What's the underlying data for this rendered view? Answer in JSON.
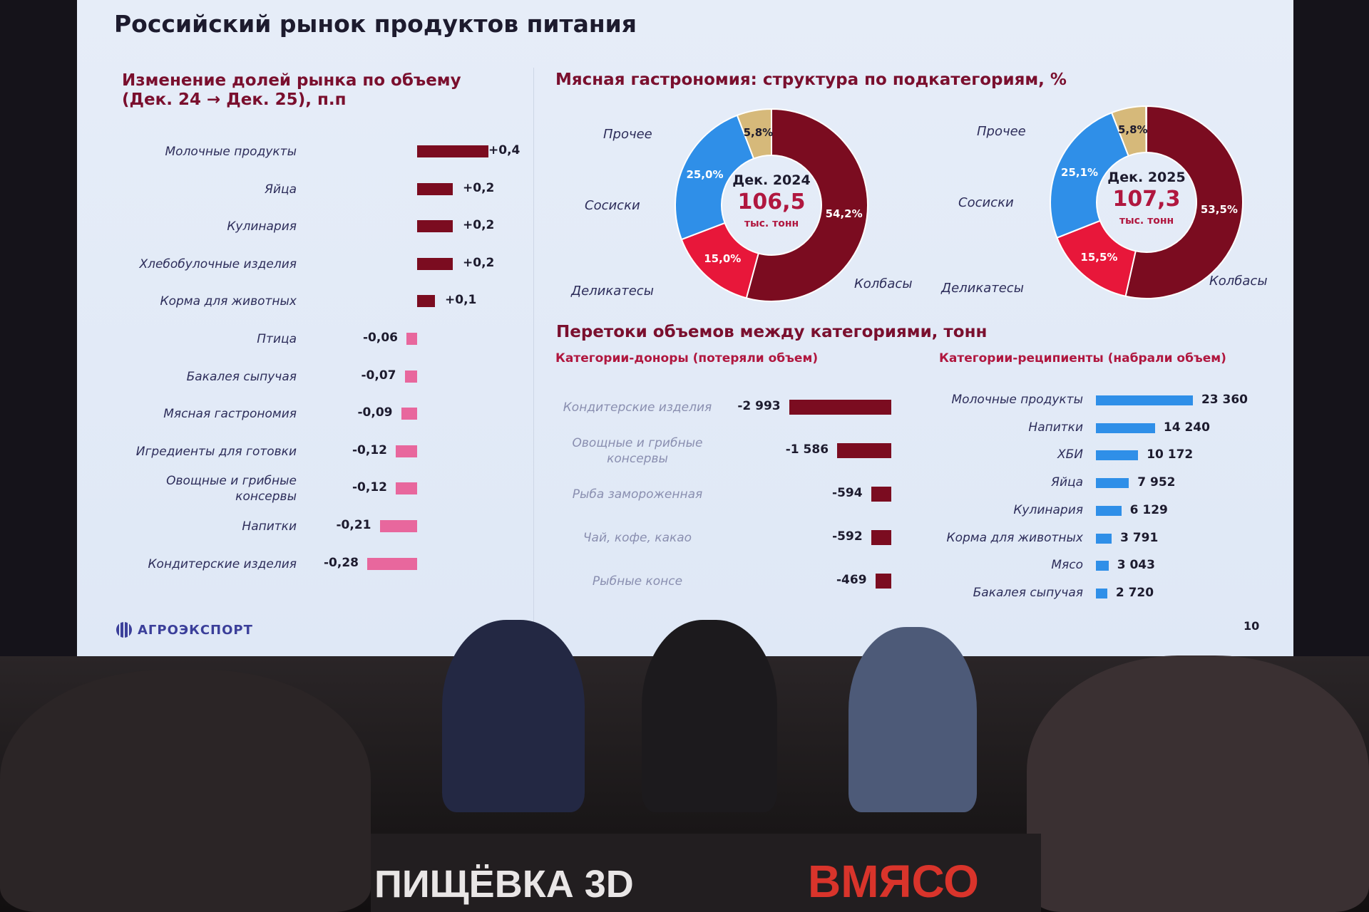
{
  "slide": {
    "title": "Российский рынок продуктов питания",
    "page_number": "10",
    "logo": "АГРОЭКСПОРТ"
  },
  "stage": {
    "banner_left": "ПИЩЁВКА 3D",
    "banner_right": "ВМЯСО"
  },
  "colors": {
    "dark_red": "#7b0c20",
    "pink": "#e8679d",
    "red": "#e8173a",
    "blue": "#2f8fe8",
    "tan": "#d6b97a",
    "heading": "#7a0f2e"
  },
  "chart_data": [
    {
      "type": "bar",
      "orientation": "horizontal",
      "title": "Изменение долей рынка по объему (Дек. 24 → Дек. 25), п.п",
      "title_lines": [
        "Изменение долей рынка по объему",
        "(Дек. 24 → Дек. 25), п.п"
      ],
      "categories": [
        "Молочные продукты",
        "Яйца",
        "Кулинария",
        "Хлебобулочные изделия",
        "Корма для животных",
        "Птица",
        "Бакалея сыпучая",
        "Мясная гастрономия",
        "Игредиенты для готовки",
        "Овощные и грибные консервы",
        "Напитки",
        "Кондитерские изделия"
      ],
      "category_lines": [
        [
          "Молочные продукты"
        ],
        [
          "Яйца"
        ],
        [
          "Кулинария"
        ],
        [
          "Хлебобулочные изделия"
        ],
        [
          "Корма для животных"
        ],
        [
          "Птица"
        ],
        [
          "Бакалея сыпучая"
        ],
        [
          "Мясная гастрономия"
        ],
        [
          "Игредиенты для готовки"
        ],
        [
          "Овощные и грибные",
          "консервы"
        ],
        [
          "Напитки"
        ],
        [
          "Кондитерские изделия"
        ]
      ],
      "values": [
        0.4,
        0.2,
        0.2,
        0.2,
        0.1,
        -0.06,
        -0.07,
        -0.09,
        -0.12,
        -0.12,
        -0.21,
        -0.28
      ],
      "labels": [
        "+0,4",
        "+0,2",
        "+0,2",
        "+0,2",
        "+0,1",
        "-0,06",
        "-0,07",
        "-0,09",
        "-0,12",
        "-0,12",
        "-0,21",
        "-0,28"
      ]
    },
    {
      "type": "pie",
      "donut": true,
      "title": "Мясная гастрономия: структура по подкатегориям, %",
      "charts": [
        {
          "center_title": "Дек. 2024",
          "center_value": "106,5",
          "center_unit": "тыс. тонн",
          "slices": [
            {
              "name": "Колбасы",
              "value": 54.2,
              "label": "54,2%"
            },
            {
              "name": "Деликатесы",
              "value": 15.0,
              "label": "15,0%"
            },
            {
              "name": "Сосиски",
              "value": 25.0,
              "label": "25,0%"
            },
            {
              "name": "Прочее",
              "value": 5.8,
              "label": "5,8%"
            }
          ]
        },
        {
          "center_title": "Дек. 2025",
          "center_value": "107,3",
          "center_unit": "тыс. тонн",
          "slices": [
            {
              "name": "Колбасы",
              "value": 53.5,
              "label": "53,5%"
            },
            {
              "name": "Деликатесы",
              "value": 15.5,
              "label": "15,5%"
            },
            {
              "name": "Сосиски",
              "value": 25.1,
              "label": "25,1%"
            },
            {
              "name": "Прочее",
              "value": 5.8,
              "label": "5,8%"
            }
          ]
        }
      ]
    },
    {
      "type": "bar",
      "orientation": "horizontal",
      "title": "Перетоки объемов между категориями, тонн",
      "subtitle": "Категории-доноры (потеряли объем)",
      "categories": [
        "Кондитерские изделия",
        "Овощные и грибные консервы",
        "Рыба замороженная",
        "Чай, кофе, какао",
        "Рыбные консервы"
      ],
      "category_lines": [
        [
          "Кондитерские изделия"
        ],
        [
          "Овощные и грибные",
          "консервы"
        ],
        [
          "Рыба замороженная"
        ],
        [
          "Чай, кофе, какао"
        ],
        [
          "Рыбные консе"
        ]
      ],
      "values": [
        -2993,
        -1586,
        -594,
        -592,
        -469
      ],
      "labels": [
        "-2 993",
        "-1 586",
        "-594",
        "-592",
        "-469"
      ]
    },
    {
      "type": "bar",
      "orientation": "horizontal",
      "subtitle": "Категории-реципиенты (набрали объем)",
      "categories": [
        "Молочные продукты",
        "Напитки",
        "ХБИ",
        "Яйца",
        "Кулинария",
        "Корма для животных",
        "Мясо",
        "Бакалея сыпучая"
      ],
      "values": [
        23360,
        14240,
        10172,
        7952,
        6129,
        3791,
        3043,
        2720
      ],
      "labels": [
        "23 360",
        "14 240",
        "10 172",
        "7 952",
        "6 129",
        "3 791",
        "3 043",
        "2 720"
      ]
    }
  ]
}
